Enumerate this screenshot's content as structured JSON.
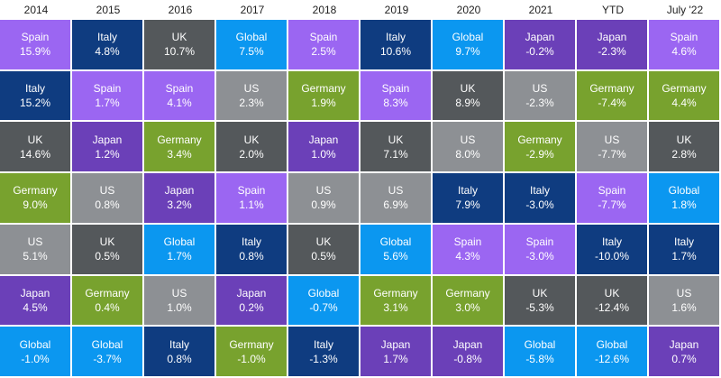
{
  "table": {
    "columns": [
      {
        "header": "2014",
        "cells": [
          {
            "name": "Spain",
            "value": "15.9%"
          },
          {
            "name": "Italy",
            "value": "15.2%"
          },
          {
            "name": "UK",
            "value": "14.6%"
          },
          {
            "name": "Germany",
            "value": "9.0%"
          },
          {
            "name": "US",
            "value": "5.1%"
          },
          {
            "name": "Japan",
            "value": "4.5%"
          },
          {
            "name": "Global",
            "value": "-1.0%"
          }
        ]
      },
      {
        "header": "2015",
        "cells": [
          {
            "name": "Italy",
            "value": "4.8%"
          },
          {
            "name": "Spain",
            "value": "1.7%"
          },
          {
            "name": "Japan",
            "value": "1.2%"
          },
          {
            "name": "US",
            "value": "0.8%"
          },
          {
            "name": "UK",
            "value": "0.5%"
          },
          {
            "name": "Germany",
            "value": "0.4%"
          },
          {
            "name": "Global",
            "value": "-3.7%"
          }
        ]
      },
      {
        "header": "2016",
        "cells": [
          {
            "name": "UK",
            "value": "10.7%"
          },
          {
            "name": "Spain",
            "value": "4.1%"
          },
          {
            "name": "Germany",
            "value": "3.4%"
          },
          {
            "name": "Japan",
            "value": "3.2%"
          },
          {
            "name": "Global",
            "value": "1.7%"
          },
          {
            "name": "US",
            "value": "1.0%"
          },
          {
            "name": "Italy",
            "value": "0.8%"
          }
        ]
      },
      {
        "header": "2017",
        "cells": [
          {
            "name": "Global",
            "value": "7.5%"
          },
          {
            "name": "US",
            "value": "2.3%"
          },
          {
            "name": "UK",
            "value": "2.0%"
          },
          {
            "name": "Spain",
            "value": "1.1%"
          },
          {
            "name": "Italy",
            "value": "0.8%"
          },
          {
            "name": "Japan",
            "value": "0.2%"
          },
          {
            "name": "Germany",
            "value": "-1.0%"
          }
        ]
      },
      {
        "header": "2018",
        "cells": [
          {
            "name": "Spain",
            "value": "2.5%"
          },
          {
            "name": "Germany",
            "value": "1.9%"
          },
          {
            "name": "Japan",
            "value": "1.0%"
          },
          {
            "name": "US",
            "value": "0.9%"
          },
          {
            "name": "UK",
            "value": "0.5%"
          },
          {
            "name": "Global",
            "value": "-0.7%"
          },
          {
            "name": "Italy",
            "value": "-1.3%"
          }
        ]
      },
      {
        "header": "2019",
        "cells": [
          {
            "name": "Italy",
            "value": "10.6%"
          },
          {
            "name": "Spain",
            "value": "8.3%"
          },
          {
            "name": "UK",
            "value": "7.1%"
          },
          {
            "name": "US",
            "value": "6.9%"
          },
          {
            "name": "Global",
            "value": "5.6%"
          },
          {
            "name": "Germany",
            "value": "3.1%"
          },
          {
            "name": "Japan",
            "value": "1.7%"
          }
        ]
      },
      {
        "header": "2020",
        "cells": [
          {
            "name": "Global",
            "value": "9.7%"
          },
          {
            "name": "UK",
            "value": "8.9%"
          },
          {
            "name": "US",
            "value": "8.0%"
          },
          {
            "name": "Italy",
            "value": "7.9%"
          },
          {
            "name": "Spain",
            "value": "4.3%"
          },
          {
            "name": "Germany",
            "value": "3.0%"
          },
          {
            "name": "Japan",
            "value": "-0.8%"
          }
        ]
      },
      {
        "header": "2021",
        "cells": [
          {
            "name": "Japan",
            "value": "-0.2%"
          },
          {
            "name": "US",
            "value": "-2.3%"
          },
          {
            "name": "Germany",
            "value": "-2.9%"
          },
          {
            "name": "Italy",
            "value": "-3.0%"
          },
          {
            "name": "Spain",
            "value": "-3.0%"
          },
          {
            "name": "UK",
            "value": "-5.3%"
          },
          {
            "name": "Global",
            "value": "-5.8%"
          }
        ]
      },
      {
        "header": "YTD",
        "cells": [
          {
            "name": "Japan",
            "value": "-2.3%"
          },
          {
            "name": "Germany",
            "value": "-7.4%"
          },
          {
            "name": "US",
            "value": "-7.7%"
          },
          {
            "name": "Spain",
            "value": "-7.7%"
          },
          {
            "name": "Italy",
            "value": "-10.0%"
          },
          {
            "name": "UK",
            "value": "-12.4%"
          },
          {
            "name": "Global",
            "value": "-12.6%"
          }
        ]
      },
      {
        "header": "July '22",
        "cells": [
          {
            "name": "Spain",
            "value": "4.6%"
          },
          {
            "name": "Germany",
            "value": "4.4%"
          },
          {
            "name": "UK",
            "value": "2.8%"
          },
          {
            "name": "Global",
            "value": "1.8%"
          },
          {
            "name": "Italy",
            "value": "1.7%"
          },
          {
            "name": "US",
            "value": "1.6%"
          },
          {
            "name": "Japan",
            "value": "0.7%"
          }
        ]
      }
    ]
  },
  "colors": {
    "Spain": "#9b66f2",
    "Italy": "#0f3c80",
    "UK": "#54585b",
    "Global": "#0b97f0",
    "US": "#8d9094",
    "Germany": "#78a22e",
    "Japan": "#6b40b8"
  }
}
